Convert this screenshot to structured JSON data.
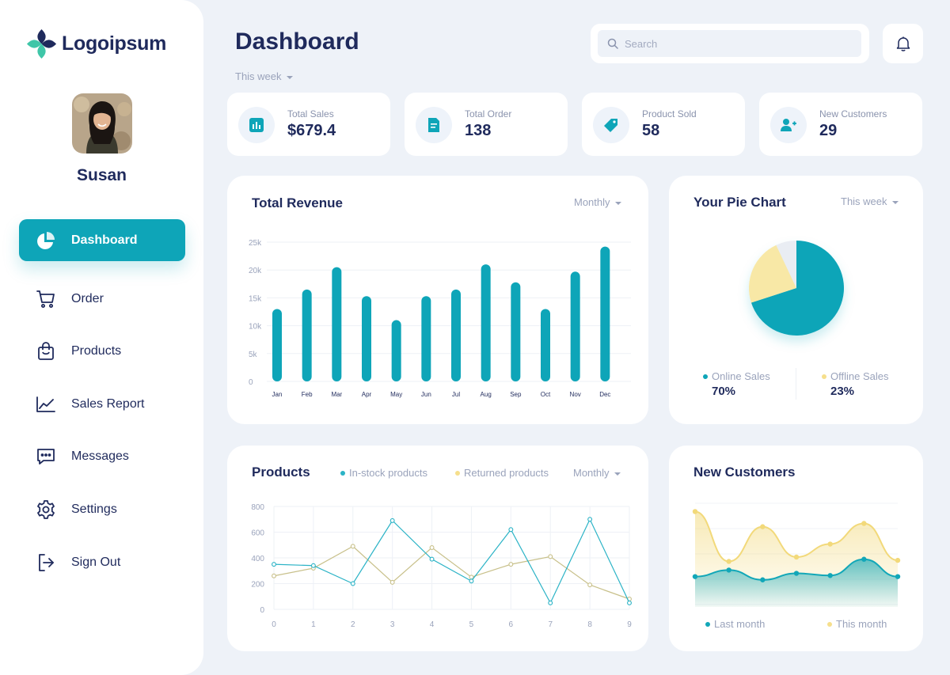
{
  "brand": {
    "name": "Logoipsum"
  },
  "user": {
    "name": "Susan"
  },
  "sidebar": {
    "items": [
      {
        "label": "Dashboard",
        "icon": "pie-chart-icon",
        "active": true
      },
      {
        "label": "Order",
        "icon": "cart-icon"
      },
      {
        "label": "Products",
        "icon": "shopping-bag-icon"
      },
      {
        "label": "Sales Report",
        "icon": "line-chart-icon"
      },
      {
        "label": "Messages",
        "icon": "message-icon"
      },
      {
        "label": "Settings",
        "icon": "gear-icon"
      },
      {
        "label": "Sign Out",
        "icon": "sign-out-icon"
      }
    ]
  },
  "header": {
    "title": "Dashboard",
    "period": "This week",
    "search_placeholder": "Search"
  },
  "stats": [
    {
      "label": "Total Sales",
      "value": "$679.4",
      "icon": "bar-chart-icon"
    },
    {
      "label": "Total Order",
      "value": "138",
      "icon": "document-icon"
    },
    {
      "label": "Product Sold",
      "value": "58",
      "icon": "tag-icon"
    },
    {
      "label": "New Customers",
      "value": "29",
      "icon": "add-user-icon"
    }
  ],
  "revenue": {
    "title": "Total Revenue",
    "period": "Monthly"
  },
  "pie": {
    "title": "Your Pie Chart",
    "period": "This week",
    "online_label": "Online Sales",
    "online_value": "70%",
    "offline_label": "Offline Sales",
    "offline_value": "23%"
  },
  "products": {
    "title": "Products",
    "legend_instock": "In-stock products",
    "legend_returned": "Returned products",
    "period": "Monthly"
  },
  "customers": {
    "title": "New Customers",
    "legend_last": "Last month",
    "legend_this": "This month"
  },
  "colors": {
    "accent": "#0ea5b8",
    "yellow": "#f6df8c",
    "olive": "#c8c08a",
    "navy": "#1f2a5c",
    "muted": "#9aa3bb"
  },
  "chart_data": [
    {
      "type": "bar",
      "title": "Total Revenue",
      "categories": [
        "Jan",
        "Feb",
        "Mar",
        "Apr",
        "May",
        "Jun",
        "Jul",
        "Aug",
        "Sep",
        "Oct",
        "Nov",
        "Dec"
      ],
      "values": [
        13000,
        16500,
        20500,
        15300,
        11000,
        15300,
        16500,
        21000,
        17800,
        13000,
        19700,
        24200
      ],
      "yticks": [
        "0",
        "5k",
        "10k",
        "15k",
        "20k",
        "25k"
      ],
      "ylim": [
        0,
        25000
      ],
      "grid": true
    },
    {
      "type": "pie",
      "title": "Your Pie Chart",
      "slices": [
        {
          "name": "Online Sales",
          "value": 70,
          "color": "#0ea5b8"
        },
        {
          "name": "Offline Sales",
          "value": 23,
          "color": "#f8e8a6"
        },
        {
          "name": "",
          "value": 7,
          "color": "#e9edf3"
        }
      ]
    },
    {
      "type": "line",
      "title": "Products",
      "x": [
        0,
        1,
        2,
        3,
        4,
        5,
        6,
        7,
        8,
        9
      ],
      "series": [
        {
          "name": "In-stock products",
          "color": "#2bb3c6",
          "values": [
            350,
            340,
            200,
            690,
            390,
            220,
            620,
            50,
            700,
            50
          ]
        },
        {
          "name": "Returned products",
          "color": "#c8c08a",
          "values": [
            260,
            320,
            490,
            210,
            480,
            250,
            350,
            410,
            190,
            80
          ]
        }
      ],
      "yticks": [
        0,
        200,
        400,
        600,
        800
      ],
      "ylim": [
        0,
        800
      ],
      "grid": true
    },
    {
      "type": "area",
      "title": "New Customers",
      "series": [
        {
          "name": "This month",
          "color": "#f2d97a",
          "values": [
            88,
            42,
            74,
            46,
            58,
            77,
            43
          ]
        },
        {
          "name": "Last month",
          "color": "#12a7b8",
          "values": [
            28,
            34,
            25,
            31,
            29,
            44,
            28
          ]
        }
      ],
      "ylim": [
        0,
        100
      ]
    }
  ]
}
